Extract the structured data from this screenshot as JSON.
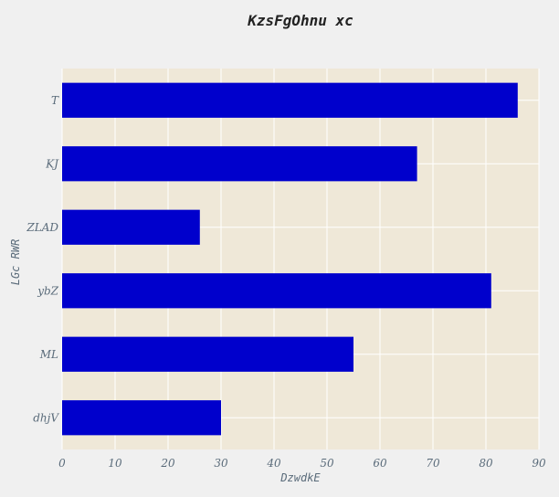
{
  "chart_data": {
    "type": "bar",
    "orientation": "horizontal",
    "title": "KzsFgOhnu xc",
    "xlabel": "DzwdkE",
    "ylabel": "LGc RWR",
    "categories": [
      "T",
      "KJ",
      "ZLAD",
      "ybZ",
      "ML",
      "dhjV"
    ],
    "values": [
      86,
      67,
      26,
      81,
      55,
      30
    ],
    "xlim": [
      0,
      90
    ],
    "xticks": [
      0,
      10,
      20,
      30,
      40,
      50,
      60,
      70,
      80,
      90
    ],
    "grid": true,
    "legend": "none",
    "colors": {
      "bar": "#0000cc",
      "plot_background": "#efe8d8",
      "page_background": "#f0f0f0",
      "grid": "#ffffff"
    }
  }
}
